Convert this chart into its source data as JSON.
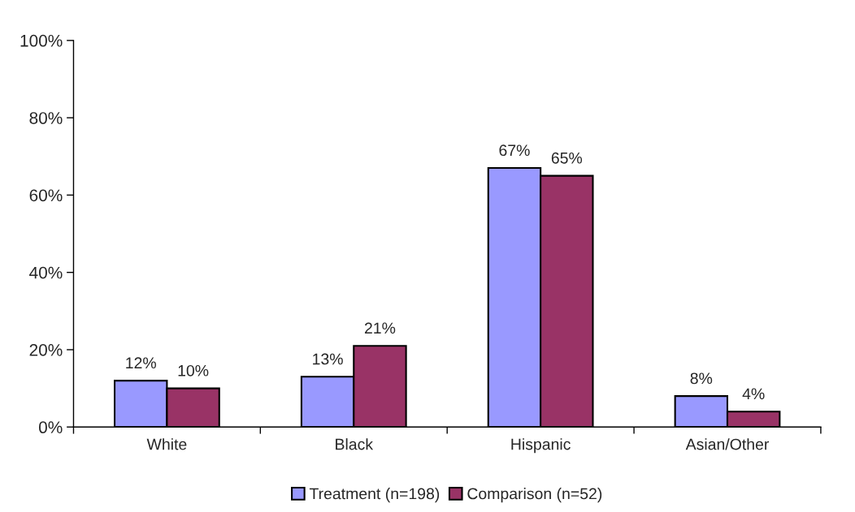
{
  "chart_data": {
    "type": "bar",
    "categories": [
      "White",
      "Black",
      "Hispanic",
      "Asian/Other"
    ],
    "series": [
      {
        "name": "Treatment (n=198)",
        "color": "#9999ff",
        "values": [
          12,
          13,
          67,
          8
        ],
        "value_labels": [
          "12%",
          "13%",
          "67%",
          "8%"
        ]
      },
      {
        "name": "Comparison (n=52)",
        "color": "#993366",
        "values": [
          10,
          21,
          65,
          4
        ],
        "value_labels": [
          "10%",
          "21%",
          "65%",
          "4%"
        ]
      }
    ],
    "ylim": [
      0,
      100
    ],
    "yticks": [
      {
        "value": 0,
        "label": "0%"
      },
      {
        "value": 20,
        "label": "20%"
      },
      {
        "value": 40,
        "label": "40%"
      },
      {
        "value": 60,
        "label": "60%"
      },
      {
        "value": 80,
        "label": "80%"
      },
      {
        "value": 100,
        "label": "100%"
      }
    ],
    "grid": false,
    "legend": "bottom"
  }
}
